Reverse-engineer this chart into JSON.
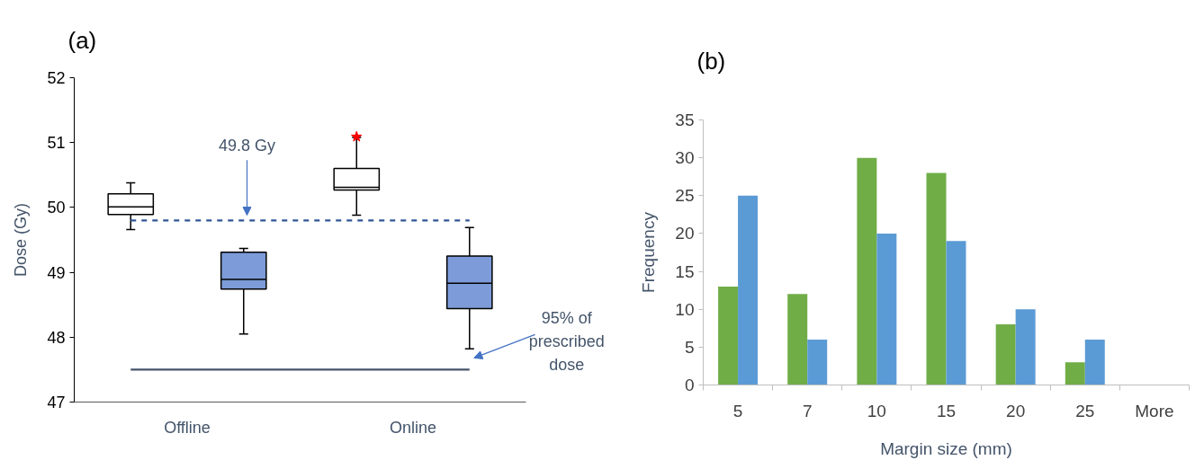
{
  "chart_data": [
    {
      "type": "box",
      "title": "(a)",
      "ylabel": "Dose (Gy)",
      "categories": [
        "Offline",
        "Online"
      ],
      "series": [
        {
          "color": "#ffffff",
          "boxes": [
            {
              "low": 49.66,
              "q1": 49.89,
              "median": 50.01,
              "q3": 50.21,
              "high": 50.38
            },
            {
              "low": 49.88,
              "q1": 50.27,
              "median": 50.31,
              "q3": 50.6,
              "high": 51.08,
              "outliers": [
                51.09
              ]
            }
          ]
        },
        {
          "color": "#7c9bd8",
          "boxes": [
            {
              "low": 48.05,
              "q1": 48.74,
              "median": 48.89,
              "q3": 49.31,
              "high": 49.37
            },
            {
              "low": 47.82,
              "q1": 48.44,
              "median": 48.83,
              "q3": 49.25,
              "high": 49.69
            }
          ]
        }
      ],
      "ylim": [
        47,
        52
      ],
      "yticks": [
        47,
        48,
        49,
        50,
        51,
        52
      ],
      "ref_lines": [
        {
          "axis": "y",
          "value": 49.8,
          "label": "49.8 Gy",
          "color": "#2f5597",
          "line_style": "dashed"
        },
        {
          "axis": "y",
          "value": 47.5,
          "label": "95% of prescribed dose",
          "color": "#44546a",
          "line_style": "solid"
        }
      ]
    },
    {
      "type": "bar",
      "title": "(b)",
      "xlabel": "Margin size (mm)",
      "ylabel": "Frequency",
      "categories": [
        "5",
        "7",
        "10",
        "15",
        "20",
        "25",
        "More"
      ],
      "series": [
        {
          "color": "#70ad47",
          "values": [
            13,
            12,
            30,
            28,
            8,
            3,
            0
          ]
        },
        {
          "color": "#5b9bd5",
          "values": [
            25,
            6,
            20,
            19,
            10,
            6,
            0
          ]
        }
      ],
      "ylim": [
        0,
        35
      ],
      "yticks": [
        0,
        5,
        10,
        15,
        20,
        25,
        30,
        35
      ]
    }
  ]
}
